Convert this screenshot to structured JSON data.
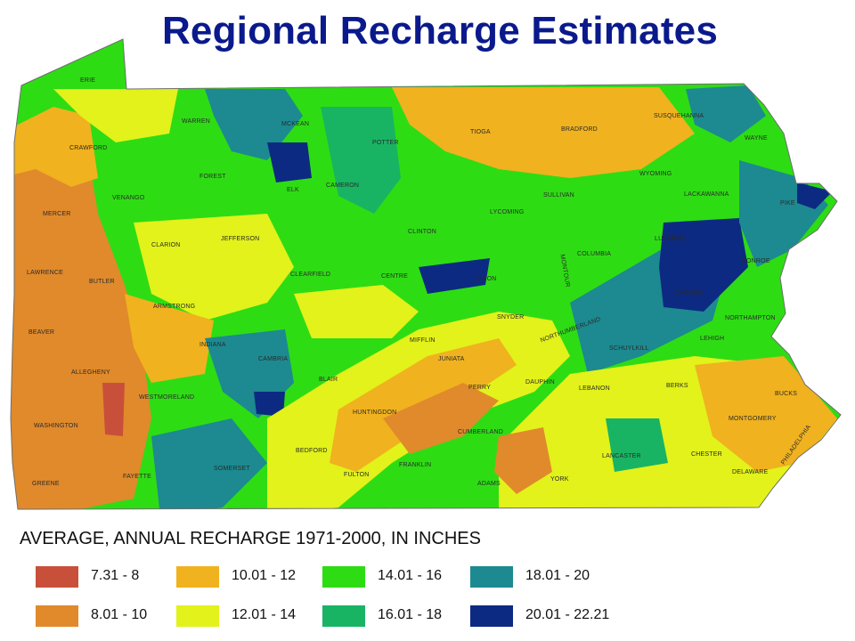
{
  "title": "Regional Recharge Estimates",
  "legend": {
    "title": "AVERAGE, ANNUAL RECHARGE 1971-2000, IN INCHES",
    "items": [
      {
        "label": "7.31 - 8",
        "color": "#c8503a"
      },
      {
        "label": "8.01 - 10",
        "color": "#e08a2c"
      },
      {
        "label": "10.01 - 12",
        "color": "#f0b21e"
      },
      {
        "label": "12.01 - 14",
        "color": "#e2f21a"
      },
      {
        "label": "14.01 - 16",
        "color": "#2edc14"
      },
      {
        "label": "16.01 - 18",
        "color": "#18b464"
      },
      {
        "label": "18.01 - 20",
        "color": "#1c8a90"
      },
      {
        "label": "20.01 - 22.21",
        "color": "#0c2a82"
      }
    ]
  },
  "counties": [
    "ERIE",
    "CRAWFORD",
    "MERCER",
    "LAWRENCE",
    "BEAVER",
    "ALLEGHENY",
    "WASHINGTON",
    "GREENE",
    "VENANGO",
    "WARREN",
    "MCKEAN",
    "POTTER",
    "TIOGA",
    "BRADFORD",
    "SUSQUEHANNA",
    "WAYNE",
    "WYOMING",
    "LACKAWANNA",
    "PIKE",
    "SULLIVAN",
    "LYCOMING",
    "CLINTON",
    "CAMERON",
    "ELK",
    "FOREST",
    "CLARION",
    "JEFFERSON",
    "BUTLER",
    "ARMSTRONG",
    "INDIANA",
    "CLEARFIELD",
    "CENTRE",
    "UNION",
    "MONTOUR",
    "COLUMBIA",
    "LUZERNE",
    "MONROE",
    "CARBON",
    "NORTHAMPTON",
    "LEHIGH",
    "SCHUYLKILL",
    "NORTHUMBERLAND",
    "SNYDER",
    "MIFFLIN",
    "JUNIATA",
    "CAMBRIA",
    "BLAIR",
    "WESTMORELAND",
    "FAYETTE",
    "SOMERSET",
    "BEDFORD",
    "HUNTINGDON",
    "FULTON",
    "FRANKLIN",
    "CUMBERLAND",
    "PERRY",
    "DAUPHIN",
    "LEBANON",
    "BERKS",
    "BUCKS",
    "MONTGOMERY",
    "CHESTER",
    "LANCASTER",
    "YORK",
    "ADAMS",
    "DELAWARE",
    "PHILADELPHIA"
  ]
}
